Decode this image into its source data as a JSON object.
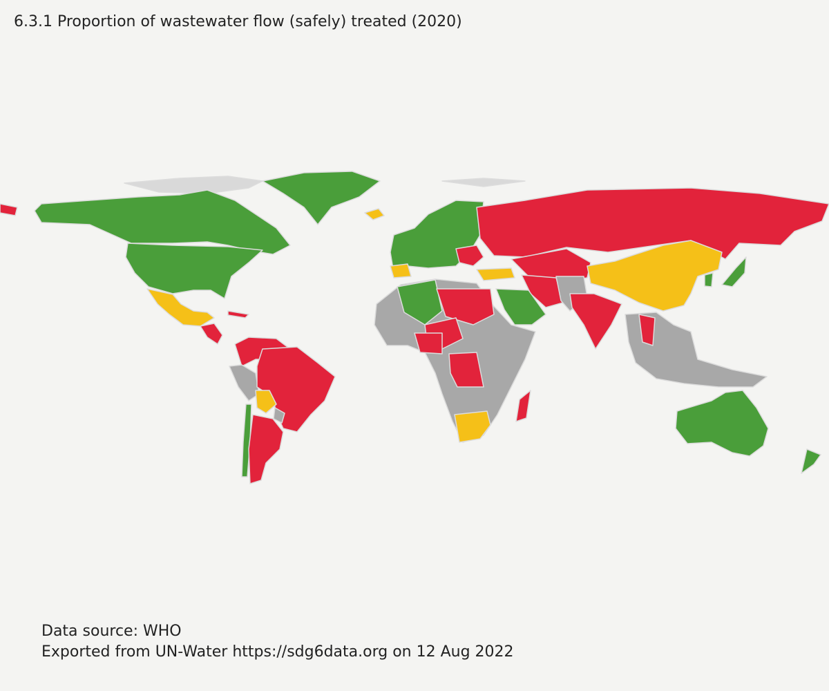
{
  "header": {
    "title": "6.3.1 Proportion of wastewater flow (safely) treated (2020)"
  },
  "footer": {
    "source": "Data source: WHO",
    "export": "Exported from UN-Water https://sdg6data.org on 12 Aug 2022"
  }
}
